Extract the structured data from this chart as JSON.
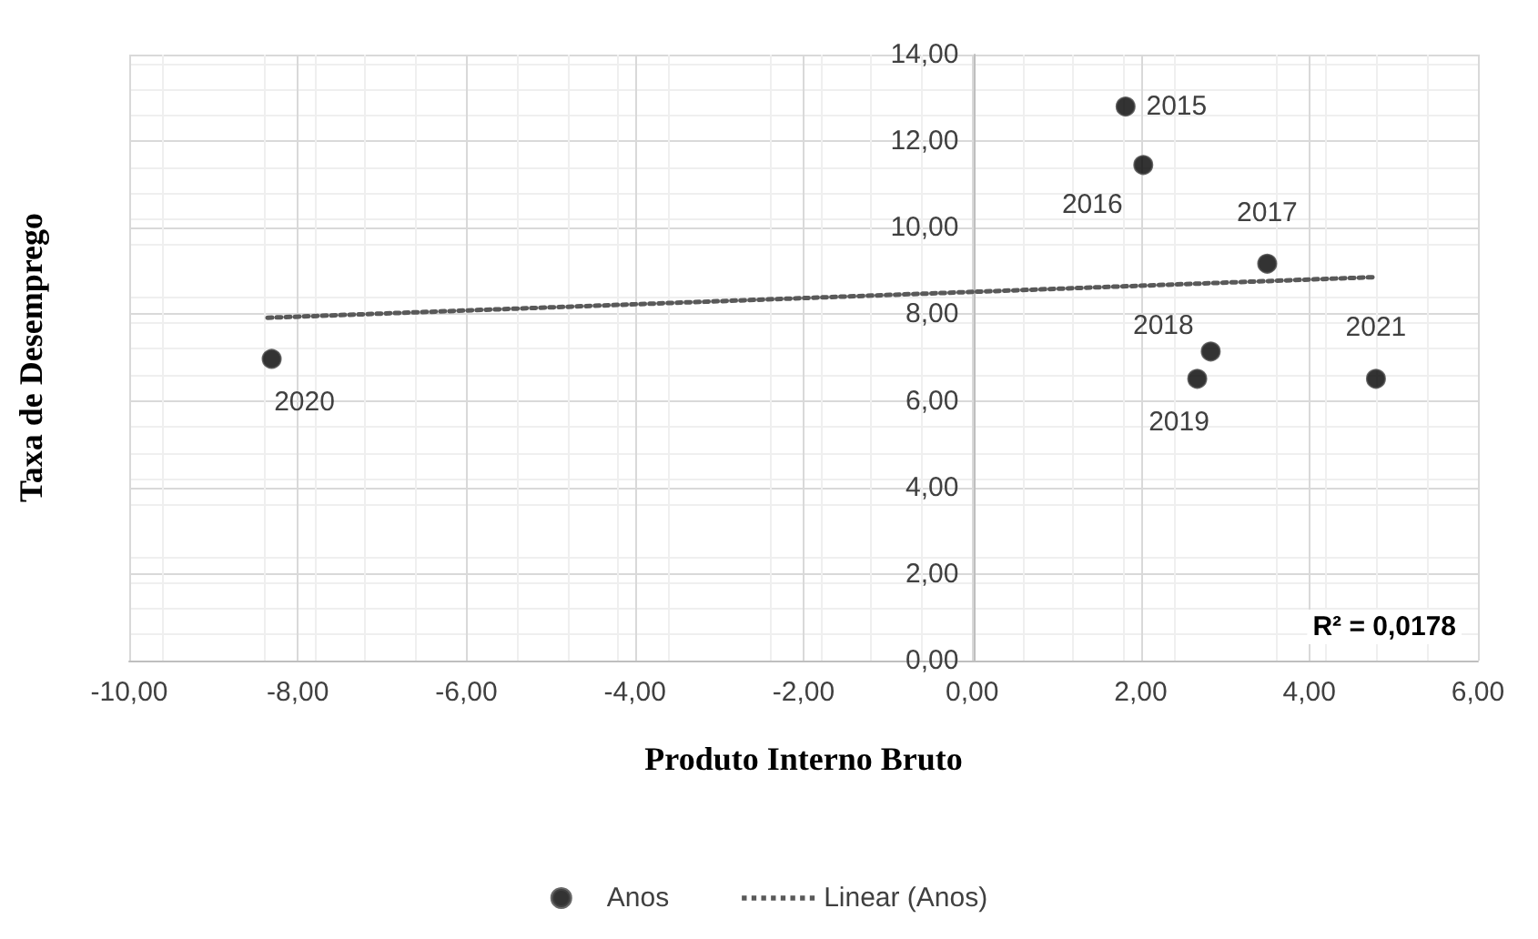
{
  "chart_data": {
    "type": "scatter",
    "xlabel": "Produto Interno Bruto",
    "ylabel": "Taxa de Desemprego",
    "series": [
      {
        "name": "Anos",
        "type": "scatter",
        "color": "#000000",
        "x": [
          1.82,
          2.03,
          3.5,
          2.83,
          2.67,
          -8.31,
          4.79
        ],
        "values": [
          12.8,
          11.45,
          9.17,
          7.14,
          6.51,
          6.97,
          6.51
        ],
        "marker": "circle"
      },
      {
        "name": "Linear (Anos)",
        "type": "line",
        "color": "#595959",
        "x": [
          -8.36,
          4.79
        ],
        "values": [
          7.92,
          8.86
        ],
        "line_style": "dotted",
        "marker": "none"
      }
    ],
    "xlim": [
      -10,
      6
    ],
    "xticks": [
      {
        "value": -10,
        "label": "-10,00"
      },
      {
        "value": -8,
        "label": "-8,00"
      },
      {
        "value": -6,
        "label": "-6,00"
      },
      {
        "value": -4,
        "label": "-4,00"
      },
      {
        "value": -2,
        "label": "-2,00"
      },
      {
        "value": 0,
        "label": "0,00"
      },
      {
        "value": 2,
        "label": "2,00"
      },
      {
        "value": 4,
        "label": "4,00"
      },
      {
        "value": 6,
        "label": "6,00"
      }
    ],
    "ylim": [
      0,
      14
    ],
    "yticks": [
      {
        "value": 0,
        "label": "0,00"
      },
      {
        "value": 2,
        "label": "2,00"
      },
      {
        "value": 4,
        "label": "4,00"
      },
      {
        "value": 6,
        "label": "6,00"
      },
      {
        "value": 8,
        "label": "8,00"
      },
      {
        "value": 10,
        "label": "10,00"
      },
      {
        "value": 12,
        "label": "12,00"
      },
      {
        "value": 14,
        "label": "14,00"
      }
    ],
    "grid": true,
    "legend": "bottom",
    "annotations": [
      {
        "text": "2015",
        "x": 1.82,
        "y": 12.8
      },
      {
        "text": "2016",
        "x": 2.03,
        "y": 11.45
      },
      {
        "text": "2017",
        "x": 3.5,
        "y": 9.17
      },
      {
        "text": "2018",
        "x": 2.83,
        "y": 7.14
      },
      {
        "text": "2019",
        "x": 2.67,
        "y": 6.51
      },
      {
        "text": "2020",
        "x": -8.31,
        "y": 6.97
      },
      {
        "text": "2021",
        "x": 4.79,
        "y": 6.51
      },
      "R² = 0,0178"
    ]
  }
}
